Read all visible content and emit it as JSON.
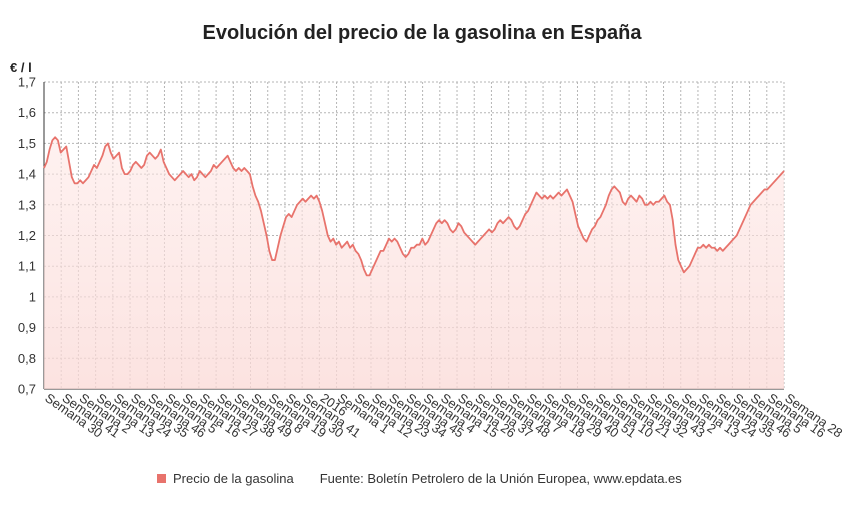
{
  "chart_data": {
    "type": "area",
    "title": "Evolución del precio de la gasolina en España",
    "ylabel": "€ / l",
    "xlabel": "",
    "ylim": [
      0.7,
      1.7
    ],
    "yticks": [
      "0,7",
      "0,8",
      "0,9",
      "1",
      "1,1",
      "1,2",
      "1,3",
      "1,4",
      "1,5",
      "1,6",
      "1,7"
    ],
    "grid": true,
    "legend_placement": "bottom",
    "xtick_labels": [
      "Semana 30",
      "Semana 41",
      "Semana 2",
      "Semana 13",
      "Semana 24",
      "Semana 35",
      "Semana 46",
      "Semana 5",
      "Semana 16",
      "Semana 27",
      "Semana 38",
      "Semana 49",
      "Semana 8",
      "Semana 19",
      "Semana 30",
      "Semana 41",
      "2016",
      "Semana 1",
      "Semana 12",
      "Semana 23",
      "Semana 34",
      "Semana 45",
      "Semana 4",
      "Semana 15",
      "Semana 26",
      "Semana 37",
      "Semana 48",
      "Semana 7",
      "Semana 18",
      "Semana 29",
      "Semana 40",
      "Semana 51",
      "Semana 10",
      "Semana 21",
      "Semana 32",
      "Semana 43",
      "Semana 2",
      "Semana 13",
      "Semana 24",
      "Semana 35",
      "Semana 46",
      "Semana 5",
      "Semana 16",
      "Semana 28"
    ],
    "series": [
      {
        "name": "Precio de la gasolina",
        "color": "#e8736c",
        "values": [
          1.42,
          1.44,
          1.48,
          1.51,
          1.52,
          1.51,
          1.47,
          1.48,
          1.49,
          1.44,
          1.39,
          1.37,
          1.37,
          1.38,
          1.37,
          1.38,
          1.39,
          1.41,
          1.43,
          1.42,
          1.44,
          1.46,
          1.49,
          1.5,
          1.47,
          1.45,
          1.46,
          1.47,
          1.42,
          1.4,
          1.4,
          1.41,
          1.43,
          1.44,
          1.43,
          1.42,
          1.43,
          1.46,
          1.47,
          1.46,
          1.45,
          1.46,
          1.48,
          1.44,
          1.42,
          1.4,
          1.39,
          1.38,
          1.39,
          1.4,
          1.41,
          1.4,
          1.39,
          1.4,
          1.38,
          1.39,
          1.41,
          1.4,
          1.39,
          1.4,
          1.41,
          1.43,
          1.42,
          1.43,
          1.44,
          1.45,
          1.46,
          1.44,
          1.42,
          1.41,
          1.42,
          1.41,
          1.42,
          1.41,
          1.4,
          1.36,
          1.33,
          1.31,
          1.28,
          1.24,
          1.2,
          1.15,
          1.12,
          1.12,
          1.16,
          1.2,
          1.23,
          1.26,
          1.27,
          1.26,
          1.28,
          1.3,
          1.31,
          1.32,
          1.31,
          1.32,
          1.33,
          1.32,
          1.33,
          1.31,
          1.28,
          1.24,
          1.2,
          1.18,
          1.19,
          1.17,
          1.18,
          1.16,
          1.17,
          1.18,
          1.16,
          1.17,
          1.15,
          1.14,
          1.12,
          1.09,
          1.07,
          1.07,
          1.09,
          1.11,
          1.13,
          1.15,
          1.15,
          1.17,
          1.19,
          1.18,
          1.19,
          1.18,
          1.16,
          1.14,
          1.13,
          1.14,
          1.16,
          1.16,
          1.17,
          1.17,
          1.19,
          1.17,
          1.18,
          1.2,
          1.22,
          1.24,
          1.25,
          1.24,
          1.25,
          1.24,
          1.22,
          1.21,
          1.22,
          1.24,
          1.23,
          1.21,
          1.2,
          1.19,
          1.18,
          1.17,
          1.18,
          1.19,
          1.2,
          1.21,
          1.22,
          1.21,
          1.22,
          1.24,
          1.25,
          1.24,
          1.25,
          1.26,
          1.25,
          1.23,
          1.22,
          1.23,
          1.25,
          1.27,
          1.28,
          1.3,
          1.32,
          1.34,
          1.33,
          1.32,
          1.33,
          1.32,
          1.33,
          1.32,
          1.33,
          1.34,
          1.33,
          1.34,
          1.35,
          1.33,
          1.31,
          1.27,
          1.23,
          1.21,
          1.19,
          1.18,
          1.2,
          1.22,
          1.23,
          1.25,
          1.26,
          1.28,
          1.3,
          1.33,
          1.35,
          1.36,
          1.35,
          1.34,
          1.31,
          1.3,
          1.32,
          1.33,
          1.32,
          1.31,
          1.33,
          1.32,
          1.3,
          1.3,
          1.31,
          1.3,
          1.31,
          1.31,
          1.32,
          1.33,
          1.31,
          1.3,
          1.25,
          1.17,
          1.12,
          1.1,
          1.08,
          1.09,
          1.1,
          1.12,
          1.14,
          1.16,
          1.16,
          1.17,
          1.16,
          1.17,
          1.16,
          1.16,
          1.15,
          1.16,
          1.15,
          1.16,
          1.17,
          1.18,
          1.19,
          1.2,
          1.22,
          1.24,
          1.26,
          1.28,
          1.3,
          1.31,
          1.32,
          1.33,
          1.34,
          1.35,
          1.35,
          1.36,
          1.37,
          1.38,
          1.39,
          1.4,
          1.41
        ]
      }
    ]
  },
  "legend": {
    "series_label": "Precio de la gasolina",
    "source": "Fuente: Boletín Petrolero de la Unión Europea, www.epdata.es"
  }
}
